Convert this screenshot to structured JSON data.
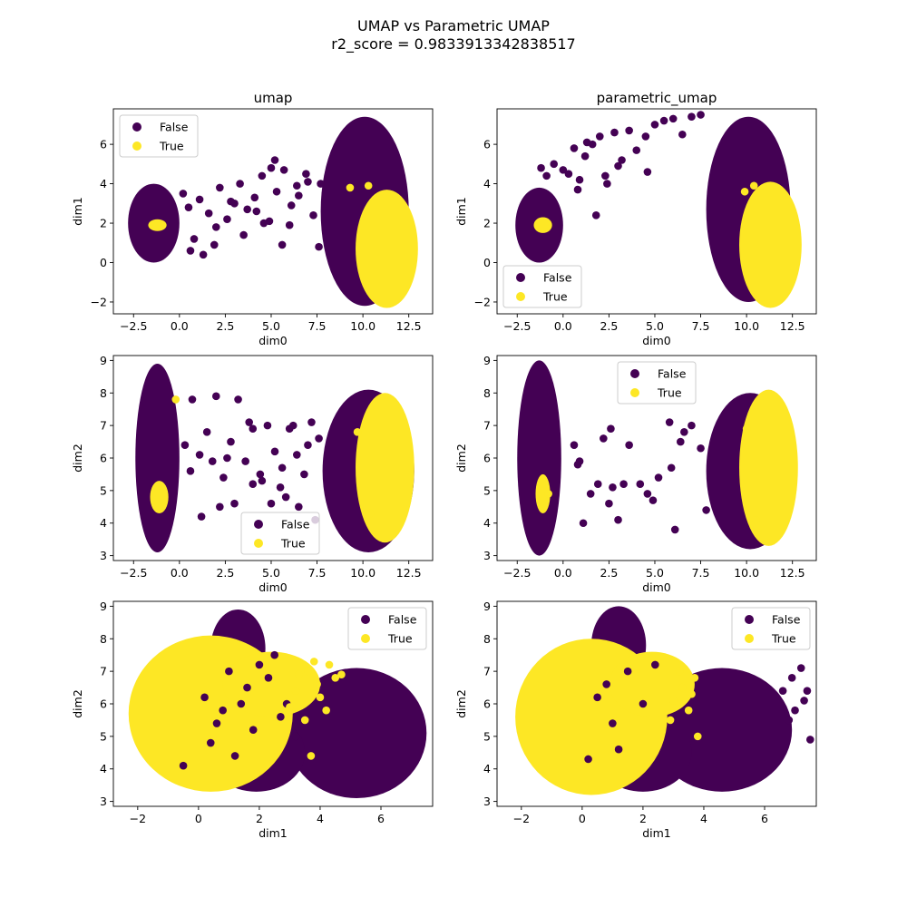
{
  "suptitle": "UMAP vs Parametric UMAP",
  "subtitle": "r2_score = 0.9833913342838517",
  "colors": {
    "False": "#440154",
    "True": "#fde725"
  },
  "legend_labels": [
    "False",
    "True"
  ],
  "chart_data": [
    {
      "type": "scatter",
      "title": "umap",
      "xlabel": "dim0",
      "ylabel": "dim1",
      "xlim": [
        -3.6,
        13.8
      ],
      "ylim": [
        -2.6,
        7.8
      ],
      "xticks": [
        -2.5,
        0.0,
        2.5,
        5.0,
        7.5,
        10.0,
        12.5
      ],
      "xtick_labels": [
        "−2.5",
        "0.0",
        "2.5",
        "5.0",
        "7.5",
        "10.0",
        "12.5"
      ],
      "yticks": [
        -2,
        0,
        2,
        4,
        6
      ],
      "ytick_labels": [
        "−2",
        "0",
        "2",
        "4",
        "6"
      ],
      "legend": "upper left",
      "clusters": [
        {
          "class": "False",
          "cx": -1.4,
          "cy": 2.0,
          "rx": 1.4,
          "ry": 2.0
        },
        {
          "class": "False",
          "cx": 10.1,
          "cy": 2.6,
          "rx": 2.4,
          "ry": 4.8
        },
        {
          "class": "True",
          "cx": 11.3,
          "cy": 0.7,
          "rx": 1.7,
          "ry": 3.0
        },
        {
          "class": "True",
          "cx": -1.2,
          "cy": 1.9,
          "rx": 0.5,
          "ry": 0.3
        }
      ],
      "series": [
        {
          "name": "False",
          "x": [
            0.2,
            0.5,
            1.1,
            1.6,
            2.2,
            2.6,
            3.0,
            3.3,
            3.7,
            4.1,
            4.5,
            4.9,
            5.3,
            5.7,
            6.1,
            6.5,
            6.9,
            7.3,
            7.7,
            2.0,
            3.5,
            5.0,
            6.4,
            0.8,
            1.9,
            4.2,
            5.6,
            7.0,
            2.8,
            4.6,
            0.6,
            1.3,
            7.6,
            6.0,
            5.2
          ],
          "y": [
            3.5,
            2.8,
            3.2,
            2.5,
            3.8,
            2.2,
            3.0,
            4.0,
            2.7,
            3.3,
            4.4,
            2.1,
            3.6,
            4.7,
            2.9,
            3.4,
            4.5,
            2.4,
            4.0,
            1.8,
            1.4,
            4.8,
            3.9,
            1.2,
            0.9,
            2.6,
            0.9,
            4.1,
            3.1,
            2.0,
            0.6,
            0.4,
            0.8,
            1.9,
            5.2
          ]
        },
        {
          "name": "True",
          "x": [
            9.3,
            10.3
          ],
          "y": [
            3.8,
            3.9
          ]
        }
      ]
    },
    {
      "type": "scatter",
      "title": "parametric_umap",
      "xlabel": "dim0",
      "ylabel": "dim1",
      "xlim": [
        -3.6,
        13.8
      ],
      "ylim": [
        -2.6,
        7.8
      ],
      "xticks": [
        -2.5,
        0.0,
        2.5,
        5.0,
        7.5,
        10.0,
        12.5
      ],
      "xtick_labels": [
        "−2.5",
        "0.0",
        "2.5",
        "5.0",
        "7.5",
        "10.0",
        "12.5"
      ],
      "yticks": [
        -2,
        0,
        2,
        4,
        6
      ],
      "ytick_labels": [
        "−2",
        "0",
        "2",
        "4",
        "6"
      ],
      "legend": "lower left",
      "clusters": [
        {
          "class": "False",
          "cx": -1.3,
          "cy": 1.9,
          "rx": 1.3,
          "ry": 1.9
        },
        {
          "class": "False",
          "cx": 10.1,
          "cy": 2.7,
          "rx": 2.3,
          "ry": 4.7
        },
        {
          "class": "True",
          "cx": 11.3,
          "cy": 0.9,
          "rx": 1.7,
          "ry": 3.2
        },
        {
          "class": "True",
          "cx": -1.1,
          "cy": 1.9,
          "rx": 0.5,
          "ry": 0.4
        }
      ],
      "series": [
        {
          "name": "False",
          "x": [
            -1.2,
            -0.9,
            -0.5,
            0.0,
            0.3,
            0.6,
            0.9,
            1.2,
            1.6,
            2.0,
            2.4,
            2.8,
            3.2,
            3.6,
            4.0,
            4.5,
            5.0,
            5.5,
            6.0,
            6.5,
            7.0,
            7.5,
            2.3,
            1.8,
            0.8,
            3.0,
            1.3,
            4.6
          ],
          "y": [
            4.8,
            4.4,
            5.0,
            4.7,
            4.5,
            5.8,
            4.2,
            5.4,
            6.0,
            6.4,
            4.0,
            6.6,
            5.2,
            6.7,
            5.7,
            6.4,
            7.0,
            7.2,
            7.3,
            6.5,
            7.4,
            7.5,
            4.4,
            2.4,
            3.7,
            4.9,
            6.1,
            4.6
          ]
        },
        {
          "name": "True",
          "x": [
            9.9,
            10.4
          ],
          "y": [
            3.6,
            3.9
          ]
        }
      ]
    },
    {
      "type": "scatter",
      "title": "",
      "xlabel": "dim0",
      "ylabel": "dim2",
      "xlim": [
        -3.6,
        13.8
      ],
      "ylim": [
        2.85,
        9.15
      ],
      "xticks": [
        -2.5,
        0.0,
        2.5,
        5.0,
        7.5,
        10.0,
        12.5
      ],
      "xtick_labels": [
        "−2.5",
        "0.0",
        "2.5",
        "5.0",
        "7.5",
        "10.0",
        "12.5"
      ],
      "yticks": [
        3,
        4,
        5,
        6,
        7,
        8,
        9
      ],
      "ytick_labels": [
        "3",
        "4",
        "5",
        "6",
        "7",
        "8",
        "9"
      ],
      "legend": "lower center",
      "clusters": [
        {
          "class": "False",
          "cx": -1.2,
          "cy": 6.0,
          "rx": 1.2,
          "ry": 2.9
        },
        {
          "class": "False",
          "cx": 10.3,
          "cy": 5.6,
          "rx": 2.5,
          "ry": 2.5
        },
        {
          "class": "True",
          "cx": 11.2,
          "cy": 5.7,
          "rx": 1.6,
          "ry": 2.3
        },
        {
          "class": "True",
          "cx": -1.1,
          "cy": 4.8,
          "rx": 0.5,
          "ry": 0.5
        }
      ],
      "series": [
        {
          "name": "False",
          "x": [
            0.3,
            0.7,
            1.1,
            1.5,
            2.0,
            2.4,
            2.8,
            3.2,
            3.6,
            4.0,
            4.4,
            4.8,
            5.2,
            5.6,
            6.0,
            6.4,
            6.8,
            7.2,
            7.6,
            1.2,
            2.2,
            3.0,
            4.5,
            5.5,
            6.5,
            7.4,
            0.6,
            1.8,
            3.8,
            5.0,
            6.2,
            7.0,
            2.6,
            4.0,
            5.8
          ],
          "y": [
            6.4,
            7.8,
            6.1,
            6.8,
            7.9,
            5.4,
            6.5,
            7.8,
            5.9,
            6.9,
            5.5,
            7.0,
            6.2,
            5.7,
            6.9,
            6.1,
            5.5,
            7.1,
            6.6,
            4.2,
            4.5,
            4.6,
            5.3,
            5.1,
            4.5,
            4.1,
            5.6,
            5.9,
            7.1,
            4.6,
            7.0,
            6.4,
            6.0,
            5.2,
            4.8
          ]
        },
        {
          "name": "True",
          "x": [
            -0.2,
            9.7,
            10.4
          ],
          "y": [
            7.8,
            6.8,
            4.3
          ]
        }
      ]
    },
    {
      "type": "scatter",
      "title": "",
      "xlabel": "dim0",
      "ylabel": "dim2",
      "xlim": [
        -3.6,
        13.8
      ],
      "ylim": [
        2.85,
        9.15
      ],
      "xticks": [
        -2.5,
        0.0,
        2.5,
        5.0,
        7.5,
        10.0,
        12.5
      ],
      "xtick_labels": [
        "−2.5",
        "0.0",
        "2.5",
        "5.0",
        "7.5",
        "10.0",
        "12.5"
      ],
      "yticks": [
        3,
        4,
        5,
        6,
        7,
        8,
        9
      ],
      "ytick_labels": [
        "3",
        "4",
        "5",
        "6",
        "7",
        "8",
        "9"
      ],
      "legend": "upper center",
      "clusters": [
        {
          "class": "False",
          "cx": -1.3,
          "cy": 6.0,
          "rx": 1.2,
          "ry": 3.0
        },
        {
          "class": "False",
          "cx": 10.2,
          "cy": 5.6,
          "rx": 2.4,
          "ry": 2.4
        },
        {
          "class": "True",
          "cx": 11.2,
          "cy": 5.7,
          "rx": 1.6,
          "ry": 2.4
        },
        {
          "class": "True",
          "cx": -1.1,
          "cy": 4.9,
          "rx": 0.4,
          "ry": 0.6
        }
      ],
      "series": [
        {
          "name": "False",
          "x": [
            0.6,
            0.8,
            1.1,
            1.9,
            2.2,
            2.6,
            3.0,
            3.6,
            4.2,
            4.6,
            5.2,
            5.8,
            6.4,
            7.0,
            7.5,
            2.7,
            3.3,
            4.9,
            6.1,
            7.8,
            1.5,
            2.5,
            5.9,
            6.6,
            0.9
          ],
          "y": [
            6.4,
            5.8,
            4.0,
            5.2,
            6.6,
            6.9,
            4.1,
            6.4,
            5.2,
            4.9,
            5.4,
            7.1,
            6.5,
            7.0,
            6.3,
            5.1,
            5.2,
            4.7,
            3.8,
            4.4,
            4.9,
            4.6,
            5.7,
            6.8,
            5.9
          ]
        },
        {
          "name": "True",
          "x": [
            -0.8,
            10.0,
            10.5
          ],
          "y": [
            4.9,
            6.9,
            4.1
          ]
        }
      ]
    },
    {
      "type": "scatter",
      "title": "",
      "xlabel": "dim1",
      "ylabel": "dim2",
      "xlim": [
        -2.8,
        7.7
      ],
      "ylim": [
        2.85,
        9.15
      ],
      "xticks": [
        -2,
        0,
        2,
        4,
        6
      ],
      "xtick_labels": [
        "−2",
        "0",
        "2",
        "4",
        "6"
      ],
      "yticks": [
        3,
        4,
        5,
        6,
        7,
        8,
        9
      ],
      "ytick_labels": [
        "3",
        "4",
        "5",
        "6",
        "7",
        "8",
        "9"
      ],
      "legend": "upper right",
      "clusters": [
        {
          "class": "False",
          "cx": 1.3,
          "cy": 7.7,
          "rx": 0.9,
          "ry": 1.2
        },
        {
          "class": "False",
          "cx": 5.2,
          "cy": 5.1,
          "rx": 2.3,
          "ry": 2.0
        },
        {
          "class": "False",
          "cx": 1.9,
          "cy": 4.5,
          "rx": 1.6,
          "ry": 1.2
        },
        {
          "class": "True",
          "cx": 0.4,
          "cy": 5.7,
          "rx": 2.7,
          "ry": 2.4
        },
        {
          "class": "True",
          "cx": 2.4,
          "cy": 6.6,
          "rx": 1.6,
          "ry": 1.0
        }
      ],
      "series": [
        {
          "name": "False",
          "x": [
            0.2,
            0.6,
            1.0,
            1.4,
            1.8,
            2.3,
            2.7,
            0.4,
            1.2,
            2.0,
            2.9,
            0.8,
            -0.5,
            1.6,
            2.5,
            3.2
          ],
          "y": [
            6.2,
            5.4,
            7.0,
            6.0,
            5.2,
            6.8,
            5.6,
            4.8,
            4.4,
            7.2,
            6.0,
            5.8,
            4.1,
            6.5,
            7.5,
            5.0
          ]
        },
        {
          "name": "True",
          "x": [
            3.2,
            3.6,
            3.9,
            4.3,
            4.7,
            3.0,
            3.5,
            4.0,
            4.5,
            3.8,
            3.3,
            4.2,
            3.7
          ],
          "y": [
            6.4,
            7.0,
            6.6,
            7.2,
            6.9,
            5.9,
            5.5,
            6.2,
            6.8,
            7.3,
            6.9,
            5.8,
            4.4
          ]
        }
      ]
    },
    {
      "type": "scatter",
      "title": "",
      "xlabel": "dim1",
      "ylabel": "dim2",
      "xlim": [
        -2.8,
        7.7
      ],
      "ylim": [
        2.85,
        9.15
      ],
      "xticks": [
        -2,
        0,
        2,
        4,
        6
      ],
      "xtick_labels": [
        "−2",
        "0",
        "2",
        "4",
        "6"
      ],
      "yticks": [
        3,
        4,
        5,
        6,
        7,
        8,
        9
      ],
      "ytick_labels": [
        "3",
        "4",
        "5",
        "6",
        "7",
        "8",
        "9"
      ],
      "legend": "upper right",
      "clusters": [
        {
          "class": "False",
          "cx": 1.2,
          "cy": 7.8,
          "rx": 0.9,
          "ry": 1.2
        },
        {
          "class": "False",
          "cx": 4.6,
          "cy": 5.2,
          "rx": 2.3,
          "ry": 1.9
        },
        {
          "class": "False",
          "cx": 2.0,
          "cy": 4.5,
          "rx": 1.6,
          "ry": 1.2
        },
        {
          "class": "True",
          "cx": 0.3,
          "cy": 5.6,
          "rx": 2.5,
          "ry": 2.4
        },
        {
          "class": "True",
          "cx": 2.3,
          "cy": 6.6,
          "rx": 1.4,
          "ry": 1.0
        }
      ],
      "series": [
        {
          "name": "False",
          "x": [
            6.6,
            6.9,
            7.2,
            7.4,
            7.0,
            7.3,
            6.8,
            7.5,
            0.5,
            1.0,
            1.5,
            2.0,
            0.2,
            1.2,
            2.4,
            0.8
          ],
          "y": [
            6.4,
            6.8,
            7.1,
            6.4,
            5.8,
            6.1,
            5.5,
            4.9,
            6.2,
            5.4,
            7.0,
            6.0,
            4.3,
            4.6,
            7.2,
            6.6
          ]
        },
        {
          "name": "True",
          "x": [
            3.0,
            3.3,
            3.7,
            3.5,
            2.9,
            3.8,
            3.2,
            3.6
          ],
          "y": [
            6.1,
            6.5,
            6.8,
            5.8,
            5.5,
            5.0,
            7.0,
            6.3
          ]
        }
      ]
    }
  ]
}
